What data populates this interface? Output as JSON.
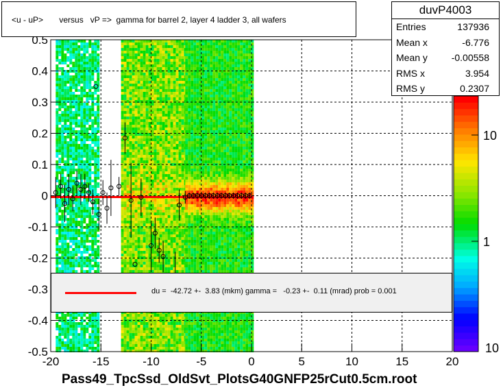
{
  "title": "<u - uP>       versus   vP =>  gamma for barrel 2, layer 4 ladder 3, all wafers",
  "x_axis_title": "Pass49_TpcSsd_OldSvt_PlotsG40GNFP25rCut0.5cm.root",
  "stats": {
    "name": "duvP4003",
    "rows": [
      {
        "label": "Entries",
        "value": "137936"
      },
      {
        "label": "Mean x",
        "value": "-6.776"
      },
      {
        "label": "Mean y",
        "value": "-0.00558"
      },
      {
        "label": "RMS x",
        "value": "3.954"
      },
      {
        "label": "RMS y",
        "value": "0.2307"
      }
    ]
  },
  "fit_legend": "du =  -42.72 +-  3.83 (mkm) gamma =   -0.23 +-  0.11 (mrad) prob = 0.001",
  "colors": {
    "fit_line": "#ff0000",
    "frame": "#000000",
    "fit_box": "#f0f0f0"
  },
  "chart_data": {
    "type": "heatmap",
    "xlim": [
      -20,
      20
    ],
    "ylim": [
      -0.5,
      0.5
    ],
    "x_ticks": [
      "-20",
      "-15",
      "-10",
      "-5",
      "0",
      "5",
      "10",
      "15",
      "20"
    ],
    "y_ticks": [
      "-0.5",
      "-0.4",
      "-0.3",
      "-0.2",
      "-0.1",
      "0",
      "0.1",
      "0.2",
      "0.3",
      "0.4",
      "0.5"
    ],
    "z_scale": "log",
    "z_ticks": [
      "1",
      "10"
    ],
    "z_bottom_label": "10",
    "grid": true,
    "fit_line": {
      "x": [
        -20,
        0
      ],
      "y": [
        -0.0045,
        -0.0045
      ]
    },
    "profile_points": [
      {
        "x": -19.5,
        "y": 0.01,
        "err": 0.05
      },
      {
        "x": -19.0,
        "y": 0.03,
        "err": 0.04
      },
      {
        "x": -18.6,
        "y": -0.025,
        "err": 0.06
      },
      {
        "x": -18.2,
        "y": 0.02,
        "err": 0.05
      },
      {
        "x": -17.8,
        "y": -0.01,
        "err": 0.04
      },
      {
        "x": -17.4,
        "y": 0.04,
        "err": 0.04
      },
      {
        "x": -17.0,
        "y": 0.02,
        "err": 0.05
      },
      {
        "x": -16.6,
        "y": 0.03,
        "err": 0.04
      },
      {
        "x": -16.2,
        "y": 0.01,
        "err": 0.03
      },
      {
        "x": -15.8,
        "y": -0.02,
        "err": 0.04
      },
      {
        "x": -15.5,
        "y": 0.35,
        "err": 0.0
      },
      {
        "x": -15.2,
        "y": -0.06,
        "err": 0.05
      },
      {
        "x": -14.8,
        "y": 0.01,
        "err": 0.04
      },
      {
        "x": -14.4,
        "y": -0.04,
        "err": 0.05
      },
      {
        "x": -14.0,
        "y": 0.025,
        "err": 0.09
      },
      {
        "x": -13.2,
        "y": 0.03,
        "err": 0.03
      },
      {
        "x": -12.6,
        "y": 0.185,
        "err": 0.05
      },
      {
        "x": -12.0,
        "y": -0.015,
        "err": 0.12
      },
      {
        "x": -11.6,
        "y": -0.22,
        "err": 0.0
      },
      {
        "x": -11.0,
        "y": -0.005,
        "err": 0.06
      },
      {
        "x": -10.0,
        "y": -0.16,
        "err": 0.08
      },
      {
        "x": -9.6,
        "y": -0.12,
        "err": 0.05
      },
      {
        "x": -9.2,
        "y": -0.175,
        "err": 0.04
      },
      {
        "x": -8.8,
        "y": -0.195,
        "err": 0.05
      },
      {
        "x": -7.6,
        "y": -0.27,
        "err": 0.09
      },
      {
        "x": -7.2,
        "y": -0.03,
        "err": 0.05
      },
      {
        "x": -6.6,
        "y": -0.005,
        "err": 0.02
      },
      {
        "x": -6.2,
        "y": 0.0,
        "err": 0.01
      },
      {
        "x": -5.8,
        "y": 0.0,
        "err": 0.01
      },
      {
        "x": -5.4,
        "y": 0.0,
        "err": 0.01
      },
      {
        "x": -5.0,
        "y": 0.0,
        "err": 0.01
      },
      {
        "x": -4.6,
        "y": 0.0,
        "err": 0.01
      },
      {
        "x": -4.2,
        "y": 0.0,
        "err": 0.01
      },
      {
        "x": -3.8,
        "y": 0.0,
        "err": 0.01
      },
      {
        "x": -3.4,
        "y": 0.0,
        "err": 0.01
      },
      {
        "x": -3.0,
        "y": 0.0,
        "err": 0.01
      },
      {
        "x": -2.6,
        "y": 0.0,
        "err": 0.01
      },
      {
        "x": -2.2,
        "y": 0.0,
        "err": 0.01
      },
      {
        "x": -1.8,
        "y": 0.0,
        "err": 0.01
      },
      {
        "x": -1.4,
        "y": 0.0,
        "err": 0.01
      },
      {
        "x": -1.0,
        "y": 0.0,
        "err": 0.01
      },
      {
        "x": -0.6,
        "y": 0.0,
        "err": 0.01
      },
      {
        "x": -0.2,
        "y": 0.0,
        "err": 0.01
      }
    ],
    "density_bands": [
      {
        "x0": -19.5,
        "x1": -15.2,
        "level": "low"
      },
      {
        "x0": -13.0,
        "x1": -6.6,
        "level": "mid"
      },
      {
        "x0": -6.6,
        "x1": 0.0,
        "level": "high"
      }
    ]
  }
}
